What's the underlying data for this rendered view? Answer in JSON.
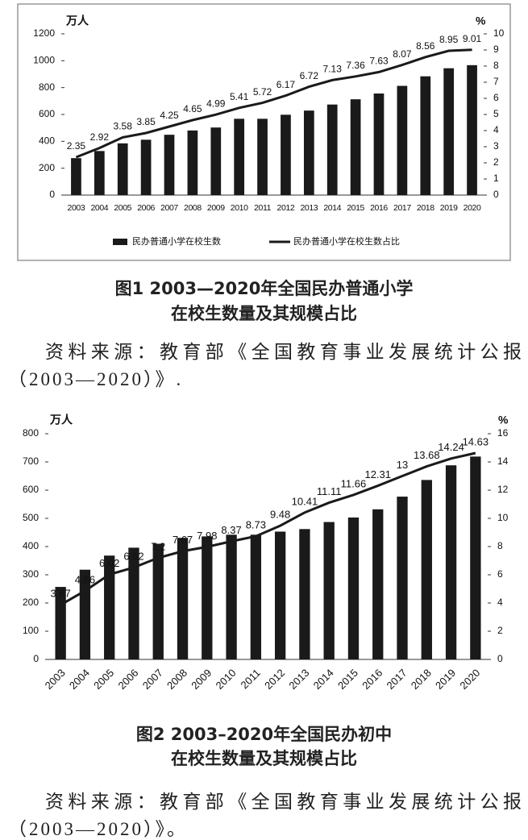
{
  "chart_data": [
    {
      "type": "bar",
      "axis_label": "万人",
      "y2_axis_label": "%",
      "legend": "bottom",
      "categories": [
        "2003",
        "2004",
        "2005",
        "2006",
        "2007",
        "2008",
        "2009",
        "2010",
        "2011",
        "2012",
        "2013",
        "2014",
        "2015",
        "2016",
        "2017",
        "2018",
        "2019",
        "2020"
      ],
      "series": [
        {
          "name": "民办普通小学在校生数",
          "type": "bar",
          "color": "#1a1a1a",
          "values": [
            275,
            328,
            385,
            412,
            449,
            481,
            503,
            568,
            568,
            598,
            629,
            674,
            713,
            756,
            813,
            884,
            944,
            967
          ]
        },
        {
          "name": "民办普通小学在校生数占比",
          "type": "line",
          "axis": "y2",
          "color": "#1a1a1a",
          "values": [
            2.35,
            2.92,
            3.58,
            3.85,
            4.25,
            4.65,
            4.99,
            5.41,
            5.72,
            6.17,
            6.72,
            7.13,
            7.36,
            7.63,
            8.07,
            8.56,
            8.95,
            9.01
          ]
        }
      ],
      "ylim": [
        0,
        1200
      ],
      "yticks": [
        0,
        200,
        400,
        600,
        800,
        1000,
        1200
      ],
      "y2lim": [
        0,
        10
      ],
      "y2ticks": [
        0,
        1,
        2,
        3,
        4,
        5,
        6,
        7,
        8,
        9,
        10
      ],
      "caption": [
        "图1 2003—2020年全国民办普通小学",
        "在校生数量及其规模占比"
      ],
      "source": "资料来源：教育部《全国教育事业发展统计公报（2003—2020）》."
    },
    {
      "type": "bar",
      "axis_label": "万人",
      "y2_axis_label": "%",
      "categories": [
        "2003",
        "2004",
        "2005",
        "2006",
        "2007",
        "2008",
        "2009",
        "2010",
        "2011",
        "2012",
        "2013",
        "2014",
        "2015",
        "2016",
        "2017",
        "2018",
        "2019",
        "2020"
      ],
      "series": [
        {
          "type": "bar",
          "color": "#1a1a1a",
          "values": [
            257,
            318,
            368,
            396,
            410,
            431,
            436,
            442,
            442,
            453,
            462,
            487,
            503,
            532,
            577,
            636,
            688,
            719
          ]
        },
        {
          "type": "line",
          "axis": "y2",
          "color": "#1a1a1a",
          "values": [
            3.87,
            4.86,
            6.02,
            6.52,
            7.2,
            7.67,
            7.98,
            8.37,
            8.73,
            9.48,
            10.41,
            11.11,
            11.66,
            12.31,
            13,
            13.68,
            14.24,
            14.63
          ]
        }
      ],
      "ylim": [
        0,
        800
      ],
      "yticks": [
        0,
        100,
        200,
        300,
        400,
        500,
        600,
        700,
        800
      ],
      "y2lim": [
        0,
        16
      ],
      "y2ticks": [
        0,
        2,
        4,
        6,
        8,
        10,
        12,
        14,
        16
      ],
      "caption": [
        "图2 2003–2020年全国民办初中",
        "在校生数量及其规模占比"
      ],
      "source": "资料来源：教育部《全国教育事业发展统计公报（2003—2020）》。"
    }
  ]
}
